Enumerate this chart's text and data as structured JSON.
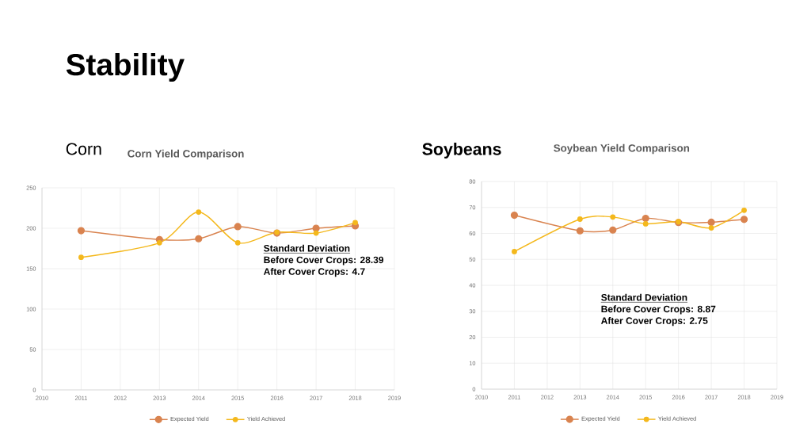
{
  "chart_data": [
    {
      "type": "line",
      "title": "Corn Yield Comparison",
      "subtitle": "Corn",
      "x": [
        2011,
        2013,
        2014,
        2015,
        2016,
        2017,
        2018
      ],
      "series": [
        {
          "name": "Expected Yield",
          "color": "#d9834f",
          "values": [
            197,
            186,
            187,
            202,
            194,
            200,
            203
          ]
        },
        {
          "name": "Yield Achieved",
          "color": "#f4b81c",
          "values": [
            164,
            182,
            220,
            182,
            195,
            194,
            207
          ]
        }
      ],
      "xlim": [
        2010,
        2019
      ],
      "xticks": [
        2010,
        2011,
        2012,
        2013,
        2014,
        2015,
        2016,
        2017,
        2018,
        2019
      ],
      "ylim": [
        0,
        250
      ],
      "yticks": [
        0,
        50,
        100,
        150,
        200,
        250
      ],
      "annotations": [
        "Stability",
        "Standard Deviation",
        "Before Cover Crops: 28.39",
        "After Cover Crops: 4.7"
      ],
      "grid": true,
      "legend": "bottom",
      "marker": "circle",
      "line_style": "solid"
    },
    {
      "type": "line",
      "title": "Soybean Yield Comparison",
      "subtitle": "Soybeans",
      "x": [
        2011,
        2013,
        2014,
        2015,
        2016,
        2017,
        2018
      ],
      "series": [
        {
          "name": "Expected Yield",
          "color": "#d9834f",
          "values": [
            67,
            61,
            61.3,
            65.8,
            64.2,
            64.3,
            65.4
          ]
        },
        {
          "name": "Yield Achieved",
          "color": "#f4b81c",
          "values": [
            53,
            65.5,
            66.3,
            63.7,
            64.5,
            62.1,
            68.9
          ]
        }
      ],
      "xlim": [
        2010,
        2019
      ],
      "xticks": [
        2010,
        2011,
        2012,
        2013,
        2014,
        2015,
        2016,
        2017,
        2018,
        2019
      ],
      "ylim": [
        0,
        80
      ],
      "yticks": [
        0,
        10,
        20,
        30,
        40,
        50,
        60,
        70,
        80
      ],
      "annotations": [
        "Standard Deviation",
        "Before Cover Crops: 8.87",
        "After Cover Crops: 2.75"
      ],
      "grid": true,
      "legend": "bottom",
      "marker": "circle",
      "line_style": "solid"
    }
  ]
}
